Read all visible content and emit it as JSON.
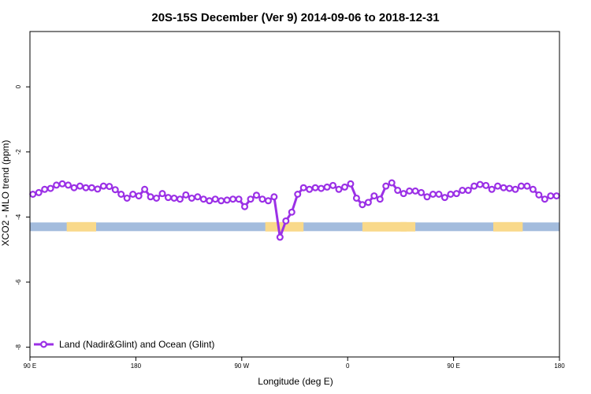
{
  "chart_data": {
    "type": "line",
    "title": "20S-15S December (Ver 9)   2014-09-06 to 2018-12-31",
    "xlabel": "Longitude (deg E)",
    "ylabel": "XCO2 - MLO trend (ppm)",
    "xlim": [
      0,
      360
    ],
    "ylim": [
      -8.3,
      1.7
    ],
    "x_ticks": [
      {
        "pos": 0,
        "label": "90 E"
      },
      {
        "pos": 72,
        "label": "180"
      },
      {
        "pos": 144,
        "label": "90 W"
      },
      {
        "pos": 216,
        "label": "0"
      },
      {
        "pos": 288,
        "label": "90 E"
      },
      {
        "pos": 360,
        "label": "180"
      }
    ],
    "y_ticks": [
      0,
      -2,
      -4,
      -6,
      -8
    ],
    "grid": false,
    "legend_position": "bottom-left",
    "surface_band": {
      "y": -4.3,
      "ocean_color": "#a3bcdd",
      "land_color": "#f9d98a",
      "land_segments": [
        [
          25,
          45
        ],
        [
          160,
          186
        ],
        [
          226,
          262
        ],
        [
          252,
          256
        ],
        [
          315,
          335
        ]
      ]
    },
    "series": [
      {
        "name": "Land (Nadir&Glint) and Ocean (Glint)",
        "color": "#9b30e6",
        "x": [
          2,
          6,
          10,
          14,
          18,
          22,
          26,
          30,
          34,
          38,
          42,
          46,
          50,
          54,
          58,
          62,
          66,
          70,
          74,
          78,
          82,
          86,
          90,
          94,
          98,
          102,
          106,
          110,
          114,
          118,
          122,
          126,
          130,
          134,
          138,
          142,
          146,
          150,
          154,
          158,
          162,
          166,
          170,
          174,
          178,
          182,
          186,
          190,
          194,
          198,
          202,
          206,
          210,
          214,
          218,
          222,
          226,
          230,
          234,
          238,
          242,
          246,
          250,
          254,
          258,
          262,
          266,
          270,
          274,
          278,
          282,
          286,
          290,
          294,
          298,
          302,
          306,
          310,
          314,
          318,
          322,
          326,
          330,
          334,
          338,
          342,
          346,
          350,
          354,
          358
        ],
        "y": [
          -3.3,
          -3.25,
          -3.15,
          -3.12,
          -3.02,
          -2.98,
          -3.02,
          -3.1,
          -3.05,
          -3.1,
          -3.1,
          -3.14,
          -3.05,
          -3.06,
          -3.16,
          -3.3,
          -3.42,
          -3.3,
          -3.35,
          -3.15,
          -3.38,
          -3.42,
          -3.28,
          -3.4,
          -3.42,
          -3.45,
          -3.32,
          -3.42,
          -3.38,
          -3.45,
          -3.5,
          -3.45,
          -3.5,
          -3.48,
          -3.45,
          -3.45,
          -3.68,
          -3.45,
          -3.33,
          -3.45,
          -3.5,
          -3.38,
          -4.62,
          -4.12,
          -3.85,
          -3.3,
          -3.1,
          -3.15,
          -3.1,
          -3.12,
          -3.08,
          -3.03,
          -3.15,
          -3.08,
          -2.98,
          -3.42,
          -3.62,
          -3.55,
          -3.35,
          -3.45,
          -3.05,
          -2.95,
          -3.18,
          -3.28,
          -3.2,
          -3.2,
          -3.25,
          -3.38,
          -3.3,
          -3.3,
          -3.4,
          -3.3,
          -3.28,
          -3.18,
          -3.18,
          -3.05,
          -3.0,
          -3.03,
          -3.15,
          -3.05,
          -3.1,
          -3.12,
          -3.15,
          -3.05,
          -3.05,
          -3.15,
          -3.32,
          -3.45,
          -3.35,
          -3.35
        ]
      }
    ]
  }
}
